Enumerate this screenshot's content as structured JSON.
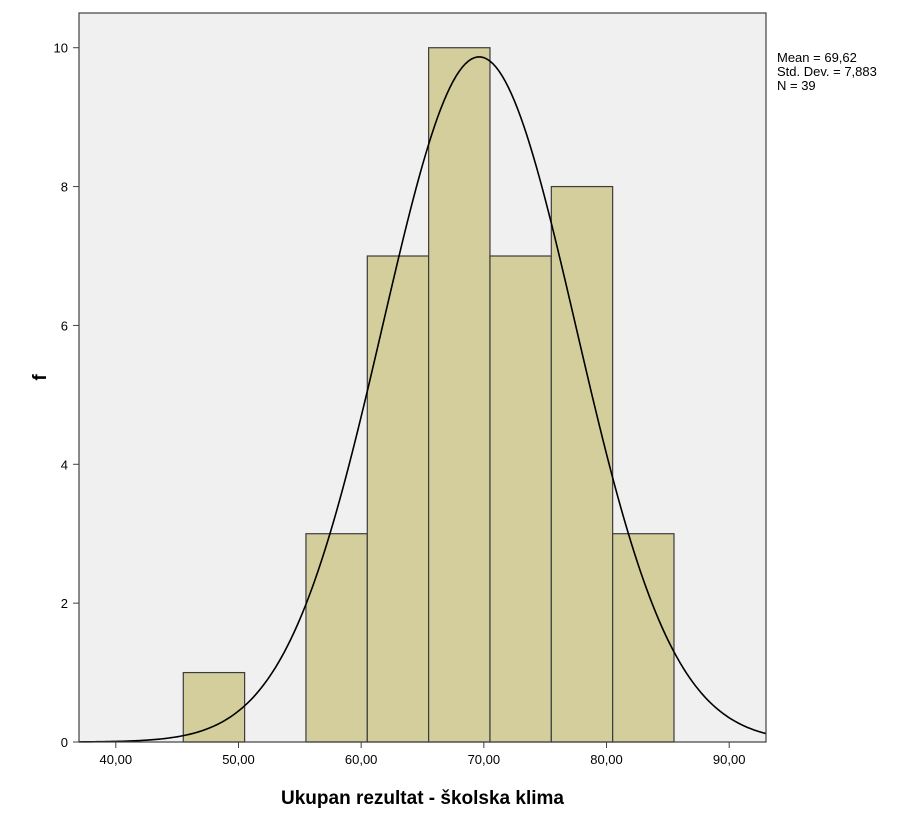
{
  "chart_data": {
    "type": "histogram",
    "xlabel": "Ukupan rezultat - školska klima",
    "ylabel": "f",
    "xlim": [
      37.0,
      93.0
    ],
    "ylim": [
      0,
      10.5
    ],
    "x_ticks": [
      40,
      50,
      60,
      70,
      80,
      90
    ],
    "x_tick_labels": [
      "40,00",
      "50,00",
      "60,00",
      "70,00",
      "80,00",
      "90,00"
    ],
    "y_ticks": [
      0,
      2,
      4,
      6,
      8,
      10
    ],
    "y_tick_labels": [
      "0",
      "2",
      "4",
      "6",
      "8",
      "10"
    ],
    "bins": [
      {
        "x0": 45.5,
        "x1": 50.5,
        "count": 1
      },
      {
        "x0": 50.5,
        "x1": 55.5,
        "count": 0
      },
      {
        "x0": 55.5,
        "x1": 60.5,
        "count": 3
      },
      {
        "x0": 60.5,
        "x1": 65.5,
        "count": 7
      },
      {
        "x0": 65.5,
        "x1": 70.5,
        "count": 10
      },
      {
        "x0": 70.5,
        "x1": 75.5,
        "count": 7
      },
      {
        "x0": 75.5,
        "x1": 80.5,
        "count": 8
      },
      {
        "x0": 80.5,
        "x1": 85.5,
        "count": 3
      }
    ],
    "normal_curve": {
      "mean": 69.62,
      "std": 7.883,
      "n": 39,
      "bin_width": 5
    },
    "stats": [
      "Mean = 69,62",
      "Std. Dev. = 7,883",
      "N = 39"
    ],
    "grid": false,
    "colors": {
      "bar_fill": "#d3ce9b",
      "bar_stroke": "#3c3c3c",
      "plot_bg": "#f0f0f0",
      "curve": "#000000"
    }
  }
}
